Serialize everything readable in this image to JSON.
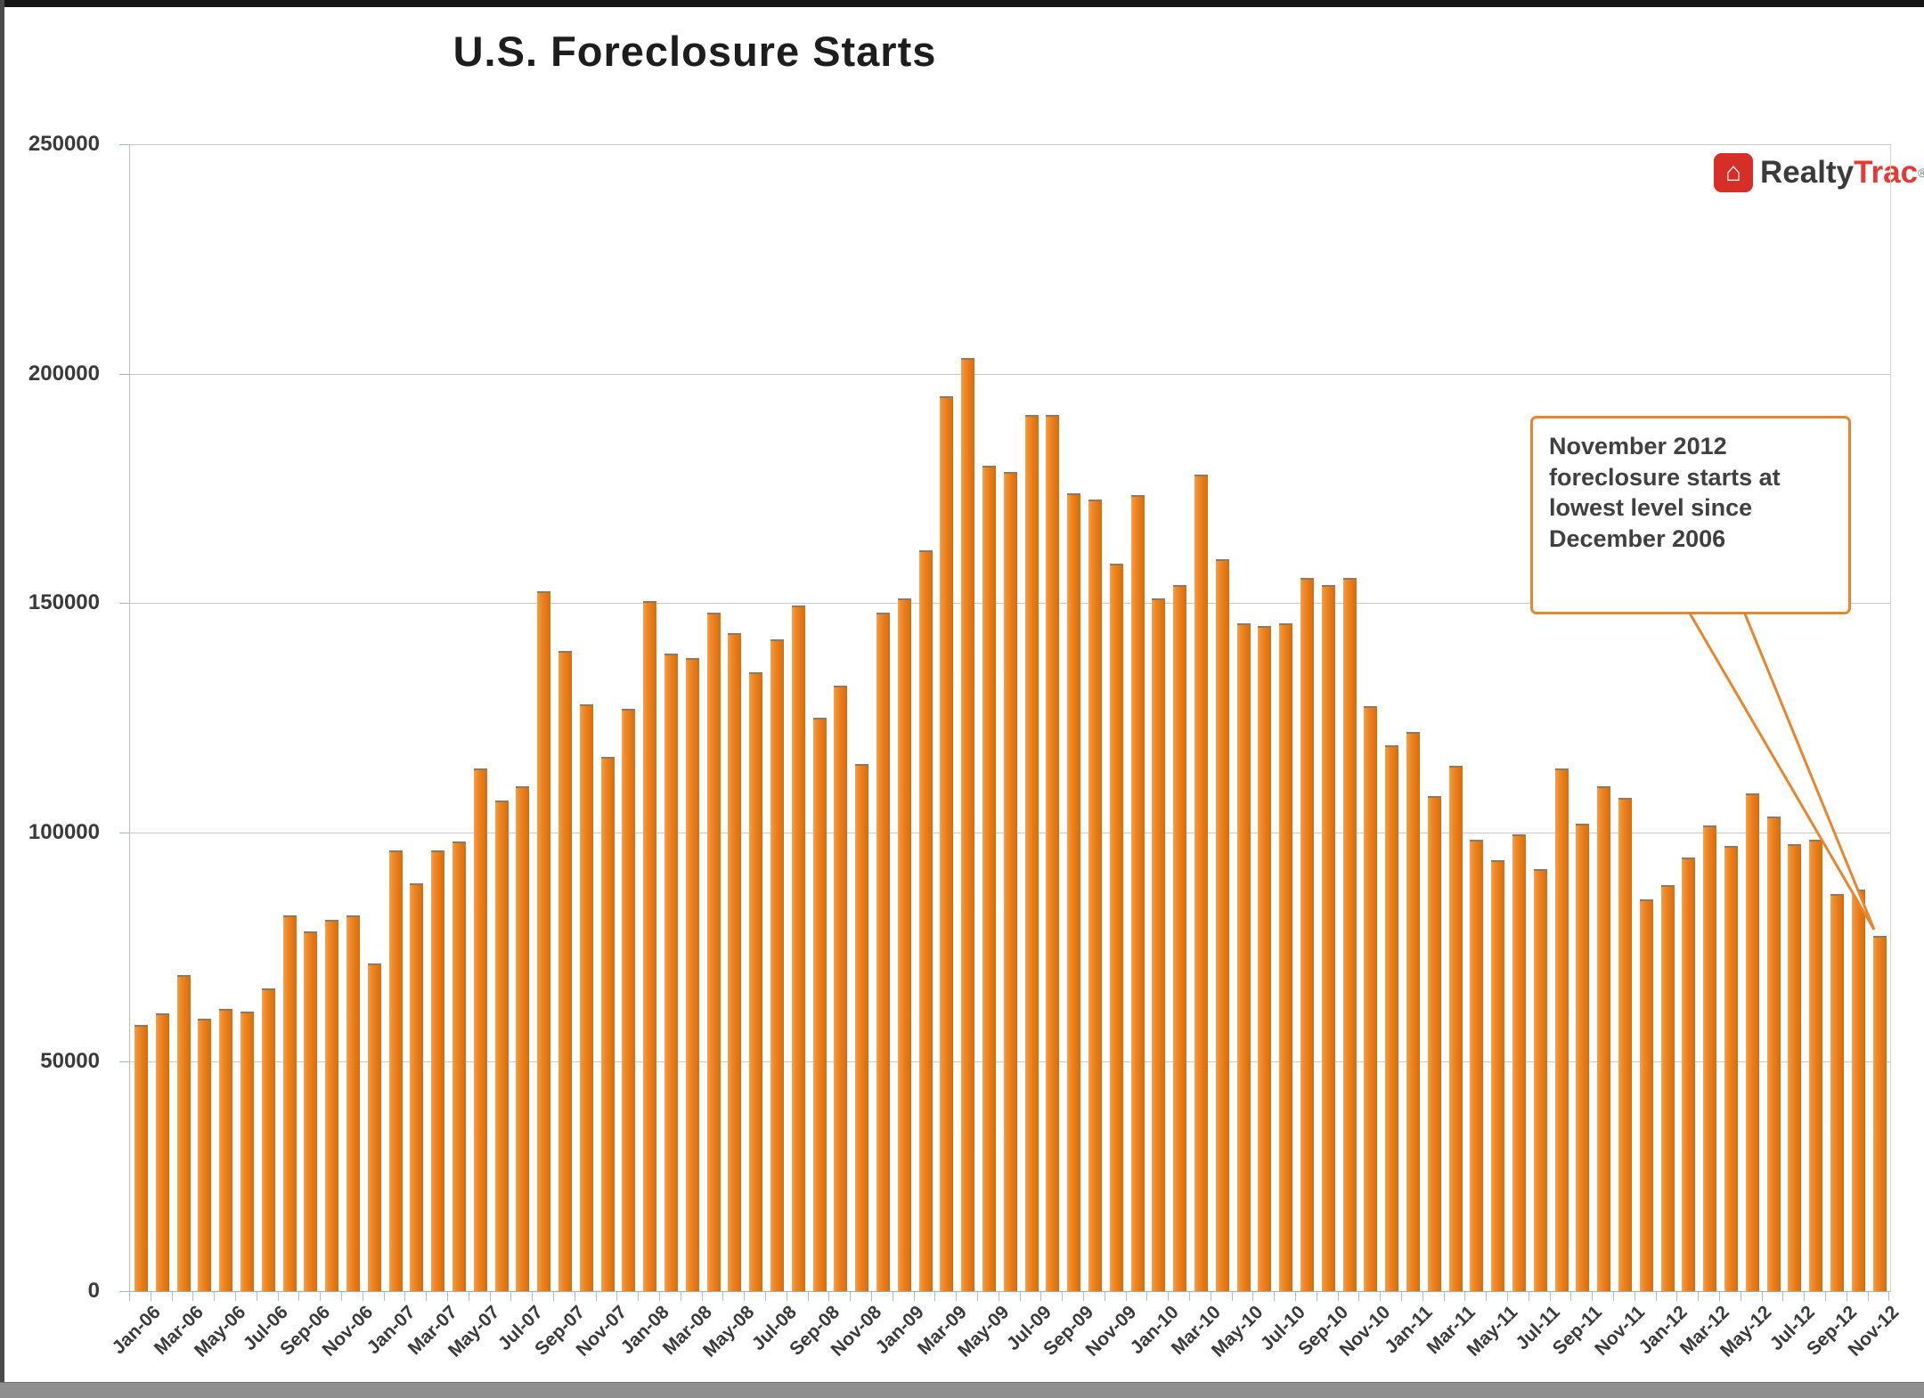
{
  "title": "U.S. Foreclosure Starts",
  "logo": {
    "realty": "Realty",
    "trac": "Trac",
    "registered_mark": "®",
    "house_icon": "⌂"
  },
  "annotation": {
    "text": "November 2012 foreclosure starts at lowest level since December 2006"
  },
  "colors": {
    "bar": "#E8801F",
    "bar_highlight": "#F3A355",
    "bar_shadow": "#D66D0E",
    "callout_border": "#E8862D",
    "gridline": "#C9C9C9",
    "logo_red": "#D62F27",
    "text": "#3A3A3A"
  },
  "chart_data": {
    "type": "bar",
    "title": "U.S. Foreclosure Starts",
    "xlabel": "",
    "ylabel": "",
    "ylim": [
      0,
      250000
    ],
    "y_ticks": [
      0,
      50000,
      100000,
      150000,
      200000,
      250000
    ],
    "grid": "horizontal",
    "legend": "none",
    "x_label_every": 2,
    "x": [
      "Jan-06",
      "Feb-06",
      "Mar-06",
      "Apr-06",
      "May-06",
      "Jun-06",
      "Jul-06",
      "Aug-06",
      "Sep-06",
      "Oct-06",
      "Nov-06",
      "Dec-06",
      "Jan-07",
      "Feb-07",
      "Mar-07",
      "Apr-07",
      "May-07",
      "Jun-07",
      "Jul-07",
      "Aug-07",
      "Sep-07",
      "Oct-07",
      "Nov-07",
      "Dec-07",
      "Jan-08",
      "Feb-08",
      "Mar-08",
      "Apr-08",
      "May-08",
      "Jun-08",
      "Jul-08",
      "Aug-08",
      "Sep-08",
      "Oct-08",
      "Nov-08",
      "Dec-08",
      "Jan-09",
      "Feb-09",
      "Mar-09",
      "Apr-09",
      "May-09",
      "Jun-09",
      "Jul-09",
      "Aug-09",
      "Sep-09",
      "Oct-09",
      "Nov-09",
      "Dec-09",
      "Jan-10",
      "Feb-10",
      "Mar-10",
      "Apr-10",
      "May-10",
      "Jun-10",
      "Jul-10",
      "Aug-10",
      "Sep-10",
      "Oct-10",
      "Nov-10",
      "Dec-10",
      "Jan-11",
      "Feb-11",
      "Mar-11",
      "Apr-11",
      "May-11",
      "Jun-11",
      "Jul-11",
      "Aug-11",
      "Sep-11",
      "Oct-11",
      "Nov-11",
      "Dec-11",
      "Jan-12",
      "Feb-12",
      "Mar-12",
      "Apr-12",
      "May-12",
      "Jun-12",
      "Jul-12",
      "Aug-12",
      "Sep-12",
      "Oct-12",
      "Nov-12"
    ],
    "values": [
      58000,
      60500,
      69000,
      59500,
      61500,
      61000,
      66000,
      82000,
      78500,
      81000,
      82000,
      71500,
      96000,
      89000,
      96000,
      98000,
      114000,
      107000,
      110000,
      152500,
      139500,
      128000,
      116500,
      127000,
      150500,
      139000,
      138000,
      148000,
      143500,
      135000,
      142000,
      149500,
      125000,
      132000,
      115000,
      148000,
      151000,
      161500,
      195000,
      203500,
      180000,
      178500,
      191000,
      191000,
      174000,
      172500,
      158500,
      173500,
      151000,
      154000,
      178000,
      159500,
      145500,
      145000,
      145500,
      155500,
      154000,
      155500,
      127500,
      119000,
      122000,
      108000,
      114500,
      98500,
      94000,
      99500,
      92000,
      114000,
      102000,
      110000,
      107500,
      85500,
      88500,
      94500,
      101500,
      97000,
      108500,
      103500,
      97500,
      98500,
      86500,
      87500,
      77500
    ]
  }
}
